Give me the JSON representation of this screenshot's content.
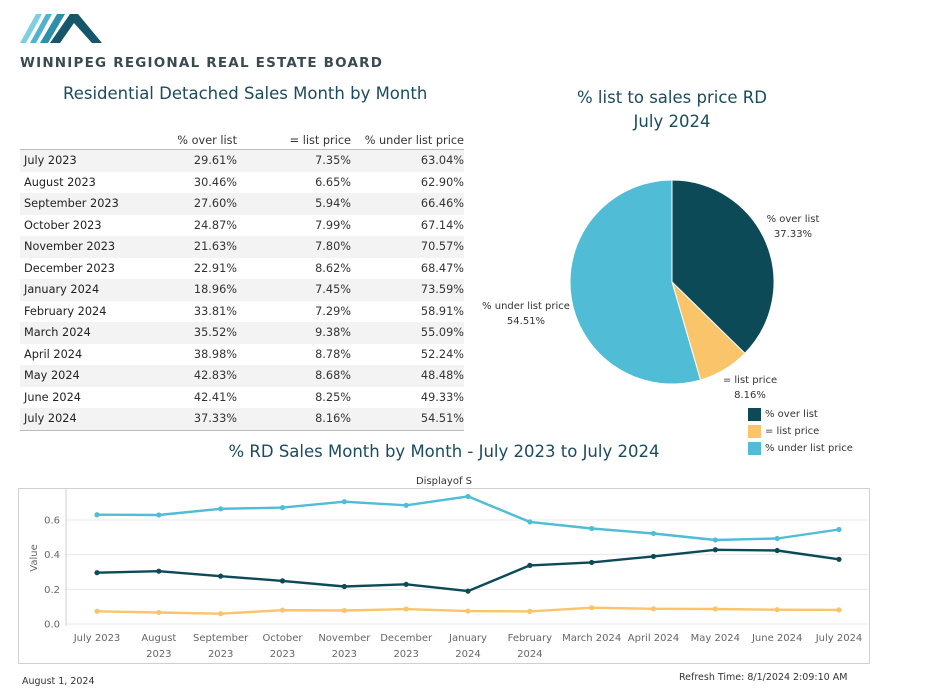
{
  "brand": {
    "name": "WINNIPEG REGIONAL REAL ESTATE BOARD"
  },
  "table": {
    "title": "Residential Detached Sales Month by Month",
    "headers": [
      "% over list",
      "= list price",
      "% under list price"
    ],
    "rows": [
      {
        "month": "July 2023",
        "over": "29.61%",
        "list": "7.35%",
        "under": "63.04%"
      },
      {
        "month": "August 2023",
        "over": "30.46%",
        "list": "6.65%",
        "under": "62.90%"
      },
      {
        "month": "September 2023",
        "over": "27.60%",
        "list": "5.94%",
        "under": "66.46%"
      },
      {
        "month": "October 2023",
        "over": "24.87%",
        "list": "7.99%",
        "under": "67.14%"
      },
      {
        "month": "November 2023",
        "over": "21.63%",
        "list": "7.80%",
        "under": "70.57%"
      },
      {
        "month": "December 2023",
        "over": "22.91%",
        "list": "8.62%",
        "under": "68.47%"
      },
      {
        "month": "January 2024",
        "over": "18.96%",
        "list": "7.45%",
        "under": "73.59%"
      },
      {
        "month": "February 2024",
        "over": "33.81%",
        "list": "7.29%",
        "under": "58.91%"
      },
      {
        "month": "March 2024",
        "over": "35.52%",
        "list": "9.38%",
        "under": "55.09%"
      },
      {
        "month": "April 2024",
        "over": "38.98%",
        "list": "8.78%",
        "under": "52.24%"
      },
      {
        "month": "May 2024",
        "over": "42.83%",
        "list": "8.68%",
        "under": "48.48%"
      },
      {
        "month": "June 2024",
        "over": "42.41%",
        "list": "8.25%",
        "under": "49.33%"
      },
      {
        "month": "July 2024",
        "over": "37.33%",
        "list": "8.16%",
        "under": "54.51%"
      }
    ]
  },
  "pie": {
    "title_line1": "% list to sales price RD",
    "title_line2": "July 2024"
  },
  "line": {
    "title": "% RD Sales Month by Month - July 2023 to July 2024",
    "subtitle": "Displayof S",
    "ylabel": "Value"
  },
  "footer": {
    "date": "August 1, 2024",
    "refresh": "Refresh Time: 8/1/2024 2:09:10 AM"
  },
  "colors": {
    "over": "#0d4a57",
    "list": "#fac46b",
    "under": "#50bcd6",
    "title": "#1b4b5e"
  },
  "chart_data": [
    {
      "type": "pie",
      "title": "% list to sales price RD July 2024",
      "slices": [
        {
          "label": "% over list",
          "value": 37.33,
          "text": "37.33%",
          "color": "#0d4a57"
        },
        {
          "label": "= list price",
          "value": 8.16,
          "text": "8.16%",
          "color": "#fac46b"
        },
        {
          "label": "% under list price",
          "value": 54.51,
          "text": "54.51%",
          "color": "#50bcd6"
        }
      ],
      "legend": "bottom-right"
    },
    {
      "type": "line",
      "title": "% RD Sales Month by Month - July 2023 to July 2024",
      "subtitle": "Displayof S",
      "ylabel": "Value",
      "ylim": [
        0,
        0.75
      ],
      "yticks": [
        0.0,
        0.2,
        0.4,
        0.6
      ],
      "grid": true,
      "categories": [
        [
          "July 2023"
        ],
        [
          "August",
          "2023"
        ],
        [
          "September",
          "2023"
        ],
        [
          "October",
          "2023"
        ],
        [
          "November",
          "2023"
        ],
        [
          "December",
          "2023"
        ],
        [
          "January",
          "2024"
        ],
        [
          "February",
          "2024"
        ],
        [
          "March 2024"
        ],
        [
          "April 2024"
        ],
        [
          "May 2024"
        ],
        [
          "June 2024"
        ],
        [
          "July 2024"
        ]
      ],
      "series": [
        {
          "key": "under",
          "color": "#50bcd6",
          "values": [
            0.6304,
            0.629,
            0.6646,
            0.6714,
            0.7057,
            0.6847,
            0.7359,
            0.5891,
            0.5509,
            0.5224,
            0.4848,
            0.4933,
            0.5451
          ]
        },
        {
          "key": "over",
          "color": "#0d4a57",
          "values": [
            0.2961,
            0.3046,
            0.276,
            0.2487,
            0.2163,
            0.2291,
            0.1896,
            0.3381,
            0.3552,
            0.3898,
            0.4283,
            0.4241,
            0.3733
          ]
        },
        {
          "key": "list",
          "color": "#fac46b",
          "values": [
            0.0735,
            0.0665,
            0.0594,
            0.0799,
            0.078,
            0.0862,
            0.0745,
            0.0729,
            0.0938,
            0.0878,
            0.0868,
            0.0825,
            0.0816
          ]
        }
      ]
    }
  ]
}
